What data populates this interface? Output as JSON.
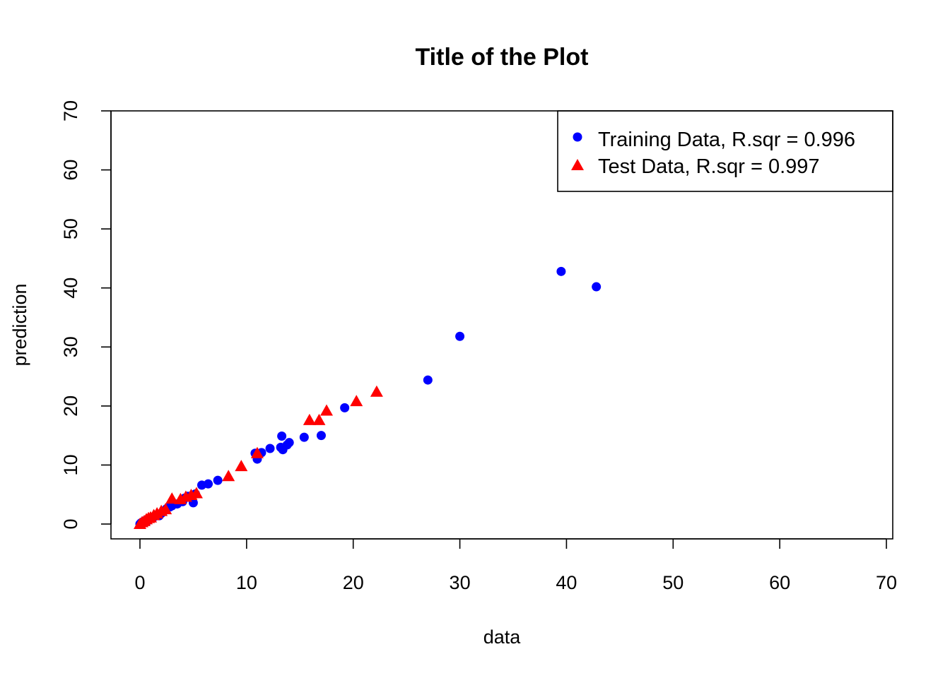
{
  "chart_data": {
    "type": "scatter",
    "title": "Title of the Plot",
    "xlabel": "data",
    "ylabel": "prediction",
    "xlim": [
      0,
      70
    ],
    "ylim": [
      0,
      70
    ],
    "x_ticks": [
      0,
      10,
      20,
      30,
      40,
      50,
      60,
      70
    ],
    "y_ticks": [
      0,
      10,
      20,
      30,
      40,
      50,
      60,
      70
    ],
    "grid": false,
    "legend_position": "top-right",
    "series": [
      {
        "name": "Training Data, R.sqr = 0.996",
        "marker": "circle",
        "color": "#0000ff",
        "points": [
          [
            0.0,
            0.0
          ],
          [
            0.1,
            0.2
          ],
          [
            0.2,
            0.1
          ],
          [
            0.3,
            0.4
          ],
          [
            0.4,
            0.3
          ],
          [
            0.5,
            0.6
          ],
          [
            0.7,
            0.5
          ],
          [
            0.8,
            0.9
          ],
          [
            1.0,
            1.0
          ],
          [
            1.2,
            1.1
          ],
          [
            1.4,
            1.3
          ],
          [
            1.6,
            1.5
          ],
          [
            1.8,
            1.4
          ],
          [
            2.0,
            1.8
          ],
          [
            2.2,
            2.1
          ],
          [
            2.5,
            2.6
          ],
          [
            2.8,
            2.9
          ],
          [
            3.0,
            3.1
          ],
          [
            3.5,
            3.4
          ],
          [
            4.0,
            3.8
          ],
          [
            4.2,
            4.4
          ],
          [
            4.5,
            4.7
          ],
          [
            5.0,
            3.6
          ],
          [
            5.2,
            5.1
          ],
          [
            5.8,
            6.6
          ],
          [
            6.4,
            6.8
          ],
          [
            7.3,
            7.4
          ],
          [
            10.8,
            12.0
          ],
          [
            11.0,
            11.0
          ],
          [
            11.4,
            12.1
          ],
          [
            12.2,
            12.8
          ],
          [
            13.2,
            13.0
          ],
          [
            13.3,
            14.9
          ],
          [
            13.4,
            12.6
          ],
          [
            13.8,
            13.4
          ],
          [
            14.0,
            13.8
          ],
          [
            15.4,
            14.7
          ],
          [
            17.0,
            15.0
          ],
          [
            19.2,
            19.7
          ],
          [
            27.0,
            24.4
          ],
          [
            30.0,
            31.8
          ],
          [
            39.5,
            42.8
          ],
          [
            42.8,
            40.2
          ]
        ]
      },
      {
        "name": "Test Data, R.sqr = 0.997",
        "marker": "triangle",
        "color": "#ff0000",
        "points": [
          [
            0.0,
            0.0
          ],
          [
            0.2,
            0.3
          ],
          [
            0.4,
            0.5
          ],
          [
            0.6,
            0.8
          ],
          [
            0.8,
            1.0
          ],
          [
            1.0,
            1.1
          ],
          [
            1.3,
            1.5
          ],
          [
            1.6,
            1.8
          ],
          [
            2.0,
            2.2
          ],
          [
            2.4,
            2.5
          ],
          [
            3.0,
            4.3
          ],
          [
            3.8,
            4.2
          ],
          [
            4.3,
            4.6
          ],
          [
            4.8,
            4.9
          ],
          [
            5.3,
            5.2
          ],
          [
            8.3,
            8.1
          ],
          [
            9.5,
            9.8
          ],
          [
            11.0,
            12.0
          ],
          [
            15.9,
            17.6
          ],
          [
            16.8,
            17.6
          ],
          [
            17.5,
            19.2
          ],
          [
            20.3,
            20.8
          ],
          [
            22.2,
            22.4
          ]
        ]
      }
    ]
  }
}
